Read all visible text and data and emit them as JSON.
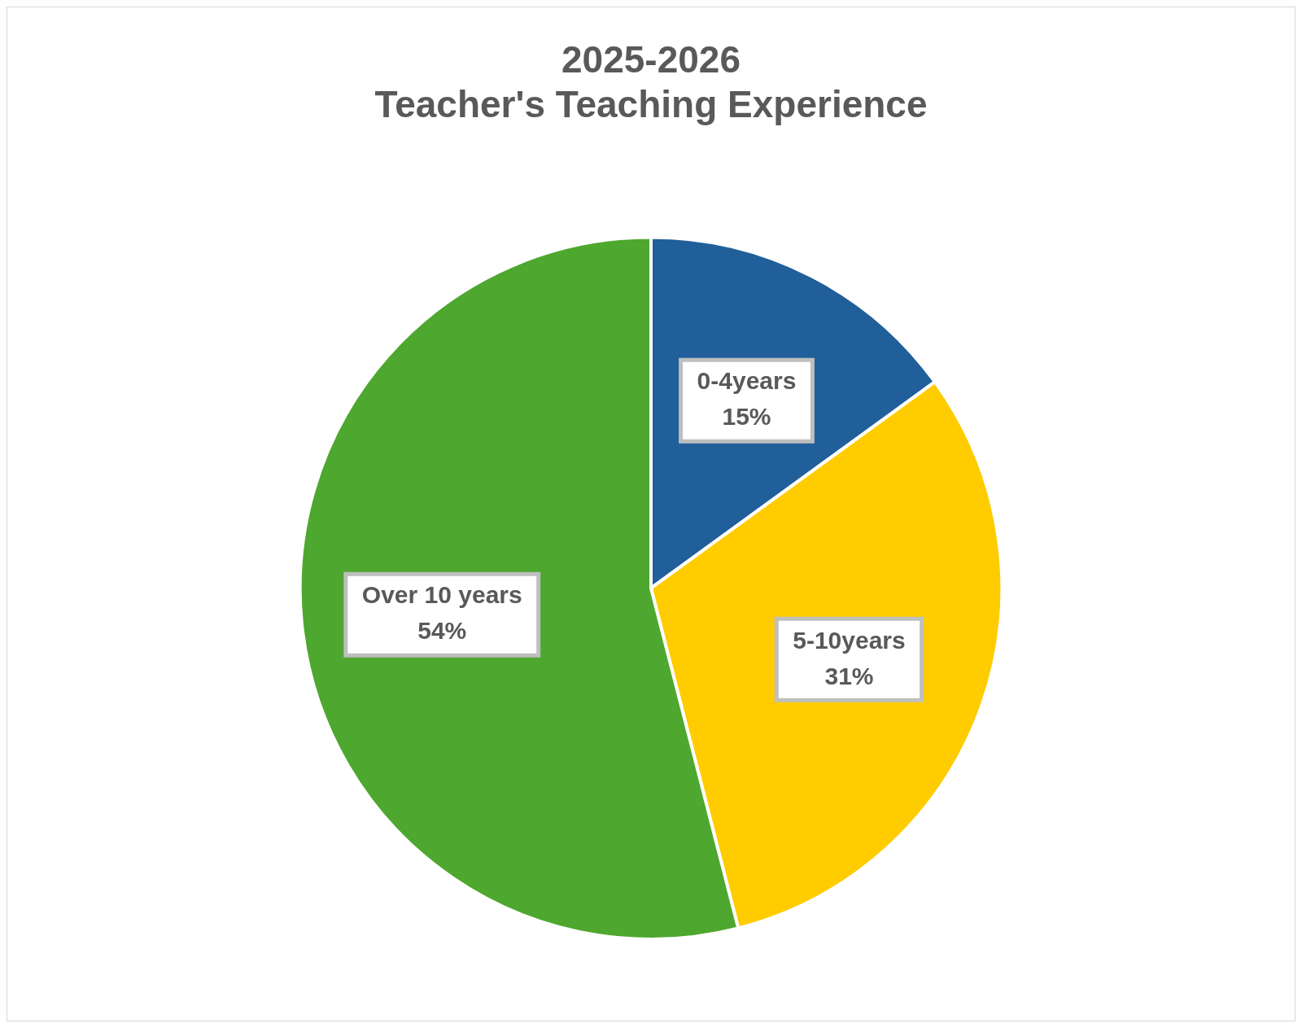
{
  "chart_data": {
    "type": "pie",
    "title": "2025-2026",
    "subtitle": "Teacher's Teaching Experience",
    "categories": [
      "0-4years",
      "5-10years",
      "Over 10 years"
    ],
    "values": [
      15,
      31,
      54
    ],
    "colors": [
      "#215f9a",
      "#ffcc00",
      "#4ea72e"
    ],
    "value_labels": [
      "15%",
      "31%",
      "54%"
    ],
    "legend": false
  }
}
